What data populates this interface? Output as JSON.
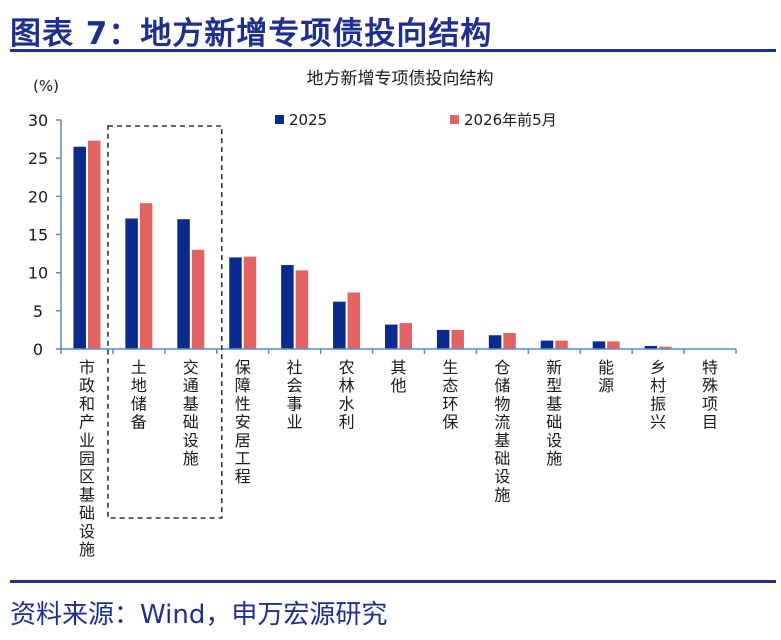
{
  "header": {
    "title": "图表 7：地方新增专项债投向结构"
  },
  "footer": {
    "source": "资料来源：Wind，申万宏源研究"
  },
  "chart_data": {
    "type": "bar",
    "title": "地方新增专项债投向结构",
    "ylabel": "(%)",
    "ylim": [
      0,
      30
    ],
    "yticks": [
      0,
      5,
      10,
      15,
      20,
      25,
      30
    ],
    "legend_position": "top",
    "grid": false,
    "categories": [
      "市政和产业园区基础设施",
      "土地储备",
      "交通基础设施",
      "保障性安居工程",
      "社会事业",
      "农林水利",
      "其他",
      "生态环保",
      "仓储物流基础设施",
      "新型基础设施",
      "能源",
      "乡村振兴",
      "特殊项目"
    ],
    "series": [
      {
        "name": "2025",
        "color": "#0a2a8c",
        "values": [
          26.5,
          17.1,
          17.0,
          12.0,
          11.0,
          6.2,
          3.2,
          2.5,
          1.8,
          1.1,
          1.0,
          0.4,
          0.0
        ]
      },
      {
        "name": "2026年前5月",
        "color": "#e36363",
        "values": [
          27.3,
          19.1,
          13.0,
          12.1,
          10.3,
          7.4,
          3.4,
          2.5,
          2.1,
          1.1,
          1.0,
          0.3,
          0.0
        ]
      }
    ],
    "highlight": {
      "categories": [
        "土地储备",
        "交通基础设施"
      ],
      "style": "dashed-box"
    }
  }
}
